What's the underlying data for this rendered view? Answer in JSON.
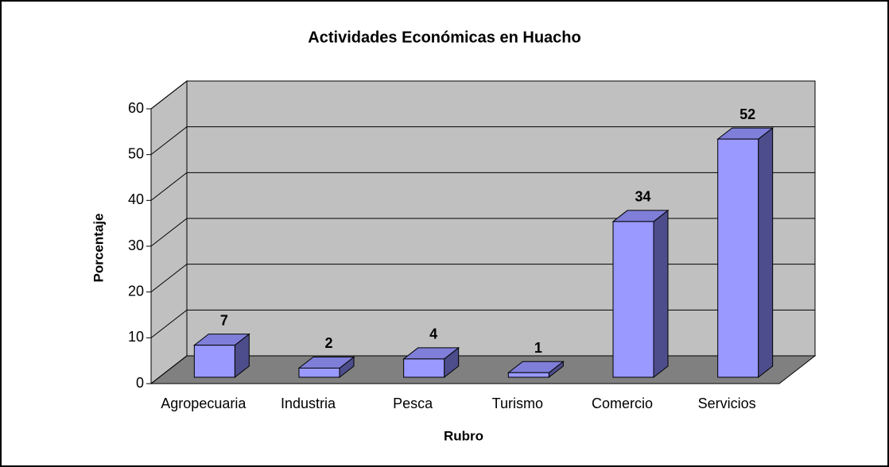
{
  "chart_data": {
    "type": "bar3d",
    "title": "Actividades Económicas en Huacho",
    "x_label": "Rubro",
    "y_label": "Porcentaje",
    "categories": [
      "Agropecuaria",
      "Industria",
      "Pesca",
      "Turismo",
      "Comercio",
      "Servicios"
    ],
    "values": [
      7,
      2,
      4,
      1,
      34,
      52
    ],
    "color": "#9999ff",
    "ylim": [
      0,
      60
    ],
    "yticks": [
      0,
      10,
      20,
      30,
      40,
      50,
      60
    ],
    "grid": true
  }
}
